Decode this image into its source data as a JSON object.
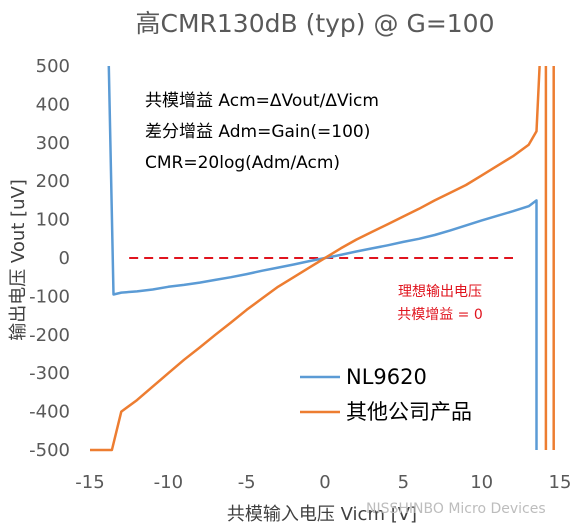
{
  "chart_data": {
    "type": "line",
    "title": "高CMR130dB (typ) @ G=100",
    "xlabel": "共模输入电压 Vicm [V]",
    "ylabel": "输出电压 Vout [uV]",
    "xlim": [
      -15,
      15
    ],
    "ylim": [
      -500,
      500
    ],
    "xticks": [
      "-15",
      "-10",
      "-5",
      "0",
      "5",
      "10",
      "15"
    ],
    "yticks": [
      "500",
      "400",
      "300",
      "200",
      "100",
      "0",
      "-100",
      "-200",
      "-300",
      "-400",
      "-500"
    ],
    "grid": false,
    "legend_position": "bottom-right",
    "series": [
      {
        "name": "NL9620",
        "color": "#5b9bd5",
        "points": [
          [
            -13.8,
            500
          ],
          [
            -13.5,
            -95
          ],
          [
            -13,
            -90
          ],
          [
            -12,
            -87
          ],
          [
            -11,
            -82
          ],
          [
            -10,
            -75
          ],
          [
            -9,
            -70
          ],
          [
            -8,
            -64
          ],
          [
            -7,
            -57
          ],
          [
            -6,
            -50
          ],
          [
            -5,
            -42
          ],
          [
            -4,
            -33
          ],
          [
            -3,
            -25
          ],
          [
            -2,
            -17
          ],
          [
            -1,
            -8
          ],
          [
            0,
            0
          ],
          [
            1,
            8
          ],
          [
            2,
            17
          ],
          [
            3,
            25
          ],
          [
            4,
            33
          ],
          [
            5,
            42
          ],
          [
            6,
            50
          ],
          [
            7,
            60
          ],
          [
            8,
            72
          ],
          [
            9,
            85
          ],
          [
            10,
            98
          ],
          [
            11,
            110
          ],
          [
            12,
            122
          ],
          [
            13,
            135
          ],
          [
            13.5,
            150
          ],
          [
            13.5,
            -500
          ]
        ]
      },
      {
        "name": "其他公司产品",
        "color": "#ed7d31",
        "points": [
          [
            -15,
            -500
          ],
          [
            -13.6,
            -500
          ],
          [
            -13,
            -400
          ],
          [
            -12,
            -370
          ],
          [
            -11,
            -335
          ],
          [
            -10,
            -300
          ],
          [
            -9,
            -265
          ],
          [
            -8,
            -233
          ],
          [
            -7,
            -200
          ],
          [
            -6,
            -168
          ],
          [
            -5,
            -135
          ],
          [
            -4,
            -105
          ],
          [
            -3,
            -75
          ],
          [
            -2,
            -50
          ],
          [
            -1,
            -25
          ],
          [
            0,
            0
          ],
          [
            1,
            25
          ],
          [
            2,
            48
          ],
          [
            3,
            68
          ],
          [
            4,
            88
          ],
          [
            5,
            108
          ],
          [
            6,
            128
          ],
          [
            7,
            150
          ],
          [
            8,
            170
          ],
          [
            9,
            190
          ],
          [
            10,
            215
          ],
          [
            11,
            240
          ],
          [
            12,
            265
          ],
          [
            13,
            295
          ],
          [
            13.5,
            330
          ],
          [
            13.7,
            500
          ]
        ]
      },
      {
        "name": "",
        "color": "#ed7d31",
        "points": [
          [
            14.1,
            500
          ],
          [
            14.1,
            -500
          ]
        ]
      },
      {
        "name": "",
        "color": "#ed7d31",
        "points": [
          [
            14.6,
            500
          ],
          [
            14.6,
            -500
          ]
        ]
      }
    ],
    "reference_line": {
      "y": 0,
      "x_from": -12.5,
      "x_to": 12,
      "color": "#e0141e",
      "style": "dashed"
    },
    "annotations": [
      "共模增益 Acm=ΔVout/ΔVicm",
      "差分增益 Adm=Gain(=100)",
      "CMR=20log(Adm/Acm)"
    ],
    "red_annotations": [
      "理想输出电压",
      "共模增益 = 0"
    ]
  },
  "watermark": "NISSHINBO Micro Devices"
}
